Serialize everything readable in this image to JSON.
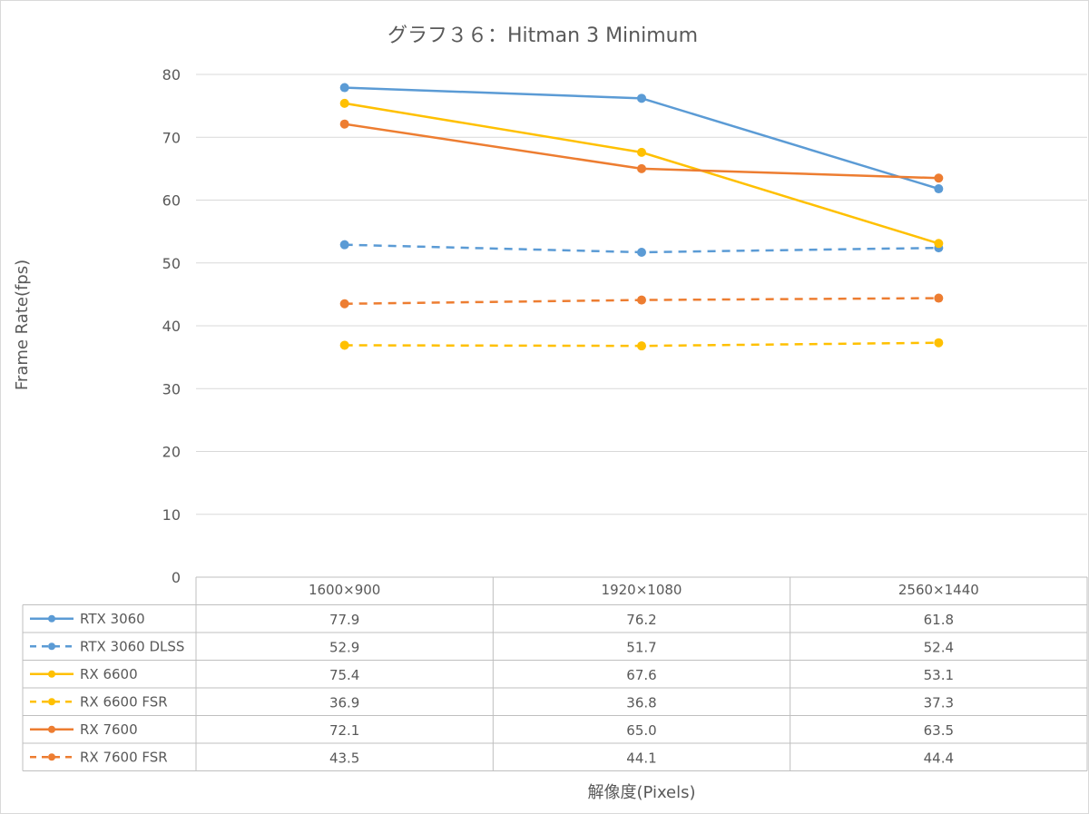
{
  "chart_data": {
    "type": "line",
    "title": "グラフ３６：Hitman 3 Minimum",
    "xlabel": "解像度(Pixels)",
    "ylabel": "Frame Rate(fps)",
    "categories": [
      "1600×900",
      "1920×1080",
      "2560×1440"
    ],
    "ylim": [
      0,
      80
    ],
    "yticks": [
      0,
      10,
      20,
      30,
      40,
      50,
      60,
      70,
      80
    ],
    "grid": true,
    "legend": "data-table",
    "series": [
      {
        "name": "RTX 3060",
        "values": [
          77.9,
          76.2,
          61.8
        ],
        "labels": [
          "77.9",
          "76.2",
          "61.8"
        ],
        "color": "#5B9BD5",
        "dashed": false
      },
      {
        "name": "RTX 3060 DLSS",
        "values": [
          52.9,
          51.7,
          52.4
        ],
        "labels": [
          "52.9",
          "51.7",
          "52.4"
        ],
        "color": "#5B9BD5",
        "dashed": true
      },
      {
        "name": "RX 6600",
        "values": [
          75.4,
          67.6,
          53.1
        ],
        "labels": [
          "75.4",
          "67.6",
          "53.1"
        ],
        "color": "#FFC000",
        "dashed": false
      },
      {
        "name": "RX 6600 FSR",
        "values": [
          36.9,
          36.8,
          37.3
        ],
        "labels": [
          "36.9",
          "36.8",
          "37.3"
        ],
        "color": "#FFC000",
        "dashed": true
      },
      {
        "name": "RX 7600",
        "values": [
          72.1,
          65.0,
          63.5
        ],
        "labels": [
          "72.1",
          "65.0",
          "63.5"
        ],
        "color": "#ED7D31",
        "dashed": false
      },
      {
        "name": "RX 7600 FSR",
        "values": [
          43.5,
          44.1,
          44.4
        ],
        "labels": [
          "43.5",
          "44.1",
          "44.4"
        ],
        "color": "#ED7D31",
        "dashed": true
      }
    ]
  }
}
